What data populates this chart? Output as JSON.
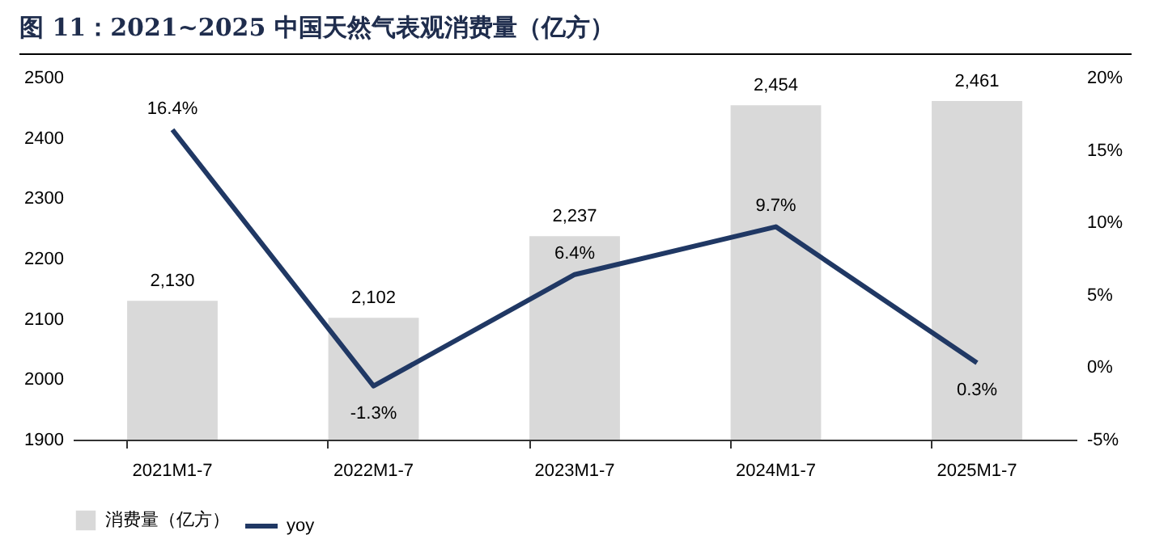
{
  "chart_data": {
    "type": "bar",
    "title": "图 11：2021~2025 中国天然气表观消费量（亿方）",
    "categories": [
      "2021M1-7",
      "2022M1-7",
      "2023M1-7",
      "2024M1-7",
      "2025M1-7"
    ],
    "series": [
      {
        "name": "消费量（亿方）",
        "color": "#d9d9d9",
        "values": [
          2130,
          2102,
          2237,
          2454,
          2461
        ],
        "value_labels": [
          "2,130",
          "2,102",
          "2,237",
          "2,454",
          "2,461"
        ]
      },
      {
        "name": "yoy",
        "type": "line",
        "axis": "y2",
        "color": "#203864",
        "values": [
          16.4,
          -1.3,
          6.4,
          9.7,
          0.3
        ],
        "value_labels": [
          "16.4%",
          "-1.3%",
          "6.4%",
          "9.7%",
          "0.3%"
        ]
      }
    ],
    "ylim": [
      1900,
      2500
    ],
    "yticks": [
      1900,
      2000,
      2100,
      2200,
      2300,
      2400,
      2500
    ],
    "y2lim": [
      -5,
      20
    ],
    "y2ticks": [
      {
        "value": -5,
        "label": "-5%"
      },
      {
        "value": 0,
        "label": "0%"
      },
      {
        "value": 5,
        "label": "5%"
      },
      {
        "value": 10,
        "label": "10%"
      },
      {
        "value": 15,
        "label": "15%"
      },
      {
        "value": 20,
        "label": "20%"
      }
    ],
    "legend": "bottom",
    "grid": false
  }
}
